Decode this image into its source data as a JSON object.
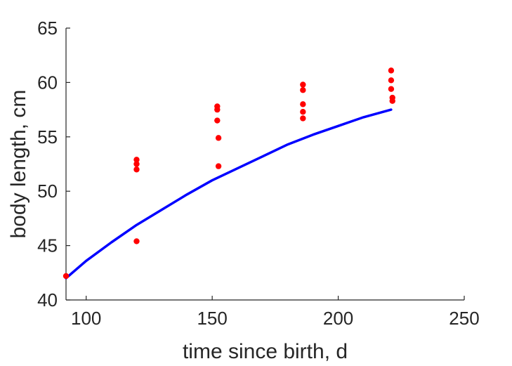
{
  "chart_data": {
    "type": "scatter",
    "title": "",
    "xlabel": "time since birth, d",
    "ylabel": "body length, cm",
    "xlim": [
      92,
      250
    ],
    "ylim": [
      40,
      65
    ],
    "xticks": [
      100,
      150,
      200,
      250
    ],
    "yticks": [
      40,
      45,
      50,
      55,
      60,
      65
    ],
    "grid": false,
    "legend": "none",
    "series": [
      {
        "kind": "scatter",
        "color": "#ff0000",
        "points": [
          {
            "x": 92,
            "y": 42.2
          },
          {
            "x": 120,
            "y": 52.9
          },
          {
            "x": 120,
            "y": 52.5
          },
          {
            "x": 120,
            "y": 52.0
          },
          {
            "x": 120,
            "y": 45.4
          },
          {
            "x": 152,
            "y": 57.8
          },
          {
            "x": 152,
            "y": 57.5
          },
          {
            "x": 152,
            "y": 56.5
          },
          {
            "x": 152.5,
            "y": 54.9
          },
          {
            "x": 152.5,
            "y": 52.3
          },
          {
            "x": 186,
            "y": 59.8
          },
          {
            "x": 186,
            "y": 59.3
          },
          {
            "x": 186,
            "y": 58.0
          },
          {
            "x": 186,
            "y": 57.3
          },
          {
            "x": 186,
            "y": 56.7
          },
          {
            "x": 221,
            "y": 61.1
          },
          {
            "x": 221,
            "y": 60.2
          },
          {
            "x": 221,
            "y": 59.4
          },
          {
            "x": 221.5,
            "y": 58.6
          },
          {
            "x": 221.5,
            "y": 58.3
          }
        ]
      },
      {
        "kind": "line",
        "color": "#0000ff",
        "x": [
          92,
          100,
          110,
          120,
          130,
          140,
          150,
          160,
          170,
          180,
          190,
          200,
          210,
          221
        ],
        "y": [
          42.0,
          43.6,
          45.3,
          46.9,
          48.3,
          49.7,
          51.0,
          52.1,
          53.2,
          54.3,
          55.2,
          56.0,
          56.8,
          57.5
        ]
      }
    ]
  }
}
